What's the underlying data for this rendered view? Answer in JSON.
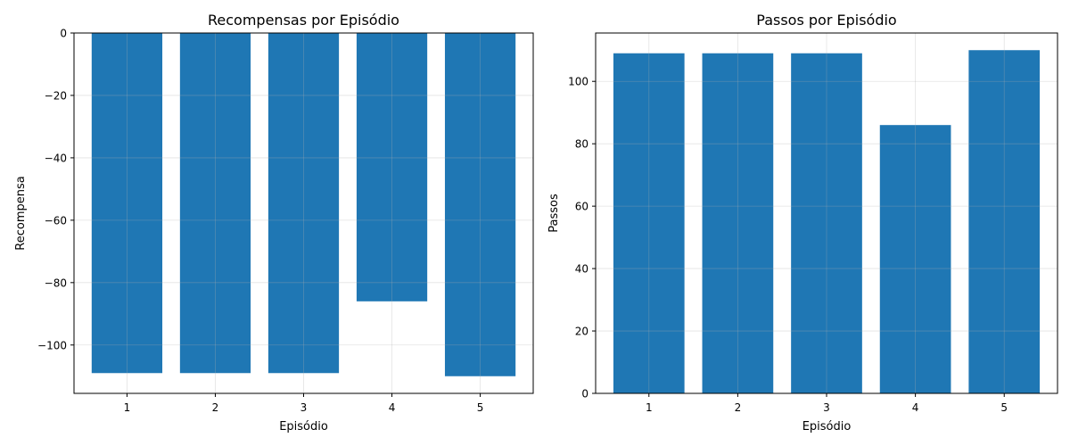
{
  "chart_data": [
    {
      "type": "bar",
      "title": "Recompensas por Episódio",
      "xlabel": "Episódio",
      "ylabel": "Recompensa",
      "categories": [
        "1",
        "2",
        "3",
        "4",
        "5"
      ],
      "values": [
        -109,
        -109,
        -109,
        -86,
        -110
      ],
      "ylim": [
        -115.5,
        0
      ],
      "yticks": [
        0,
        -20,
        -40,
        -60,
        -80,
        -100
      ],
      "ytick_labels": [
        "0",
        "−20",
        "−40",
        "−60",
        "−80",
        "−100"
      ],
      "grid": true,
      "color": "#1f77b4"
    },
    {
      "type": "bar",
      "title": "Passos por Episódio",
      "xlabel": "Episódio",
      "ylabel": "Passos",
      "categories": [
        "1",
        "2",
        "3",
        "4",
        "5"
      ],
      "values": [
        109,
        109,
        109,
        86,
        110
      ],
      "ylim": [
        0,
        115.5
      ],
      "yticks": [
        0,
        20,
        40,
        60,
        80,
        100
      ],
      "ytick_labels": [
        "0",
        "20",
        "40",
        "60",
        "80",
        "100"
      ],
      "grid": true,
      "color": "#1f77b4"
    }
  ]
}
